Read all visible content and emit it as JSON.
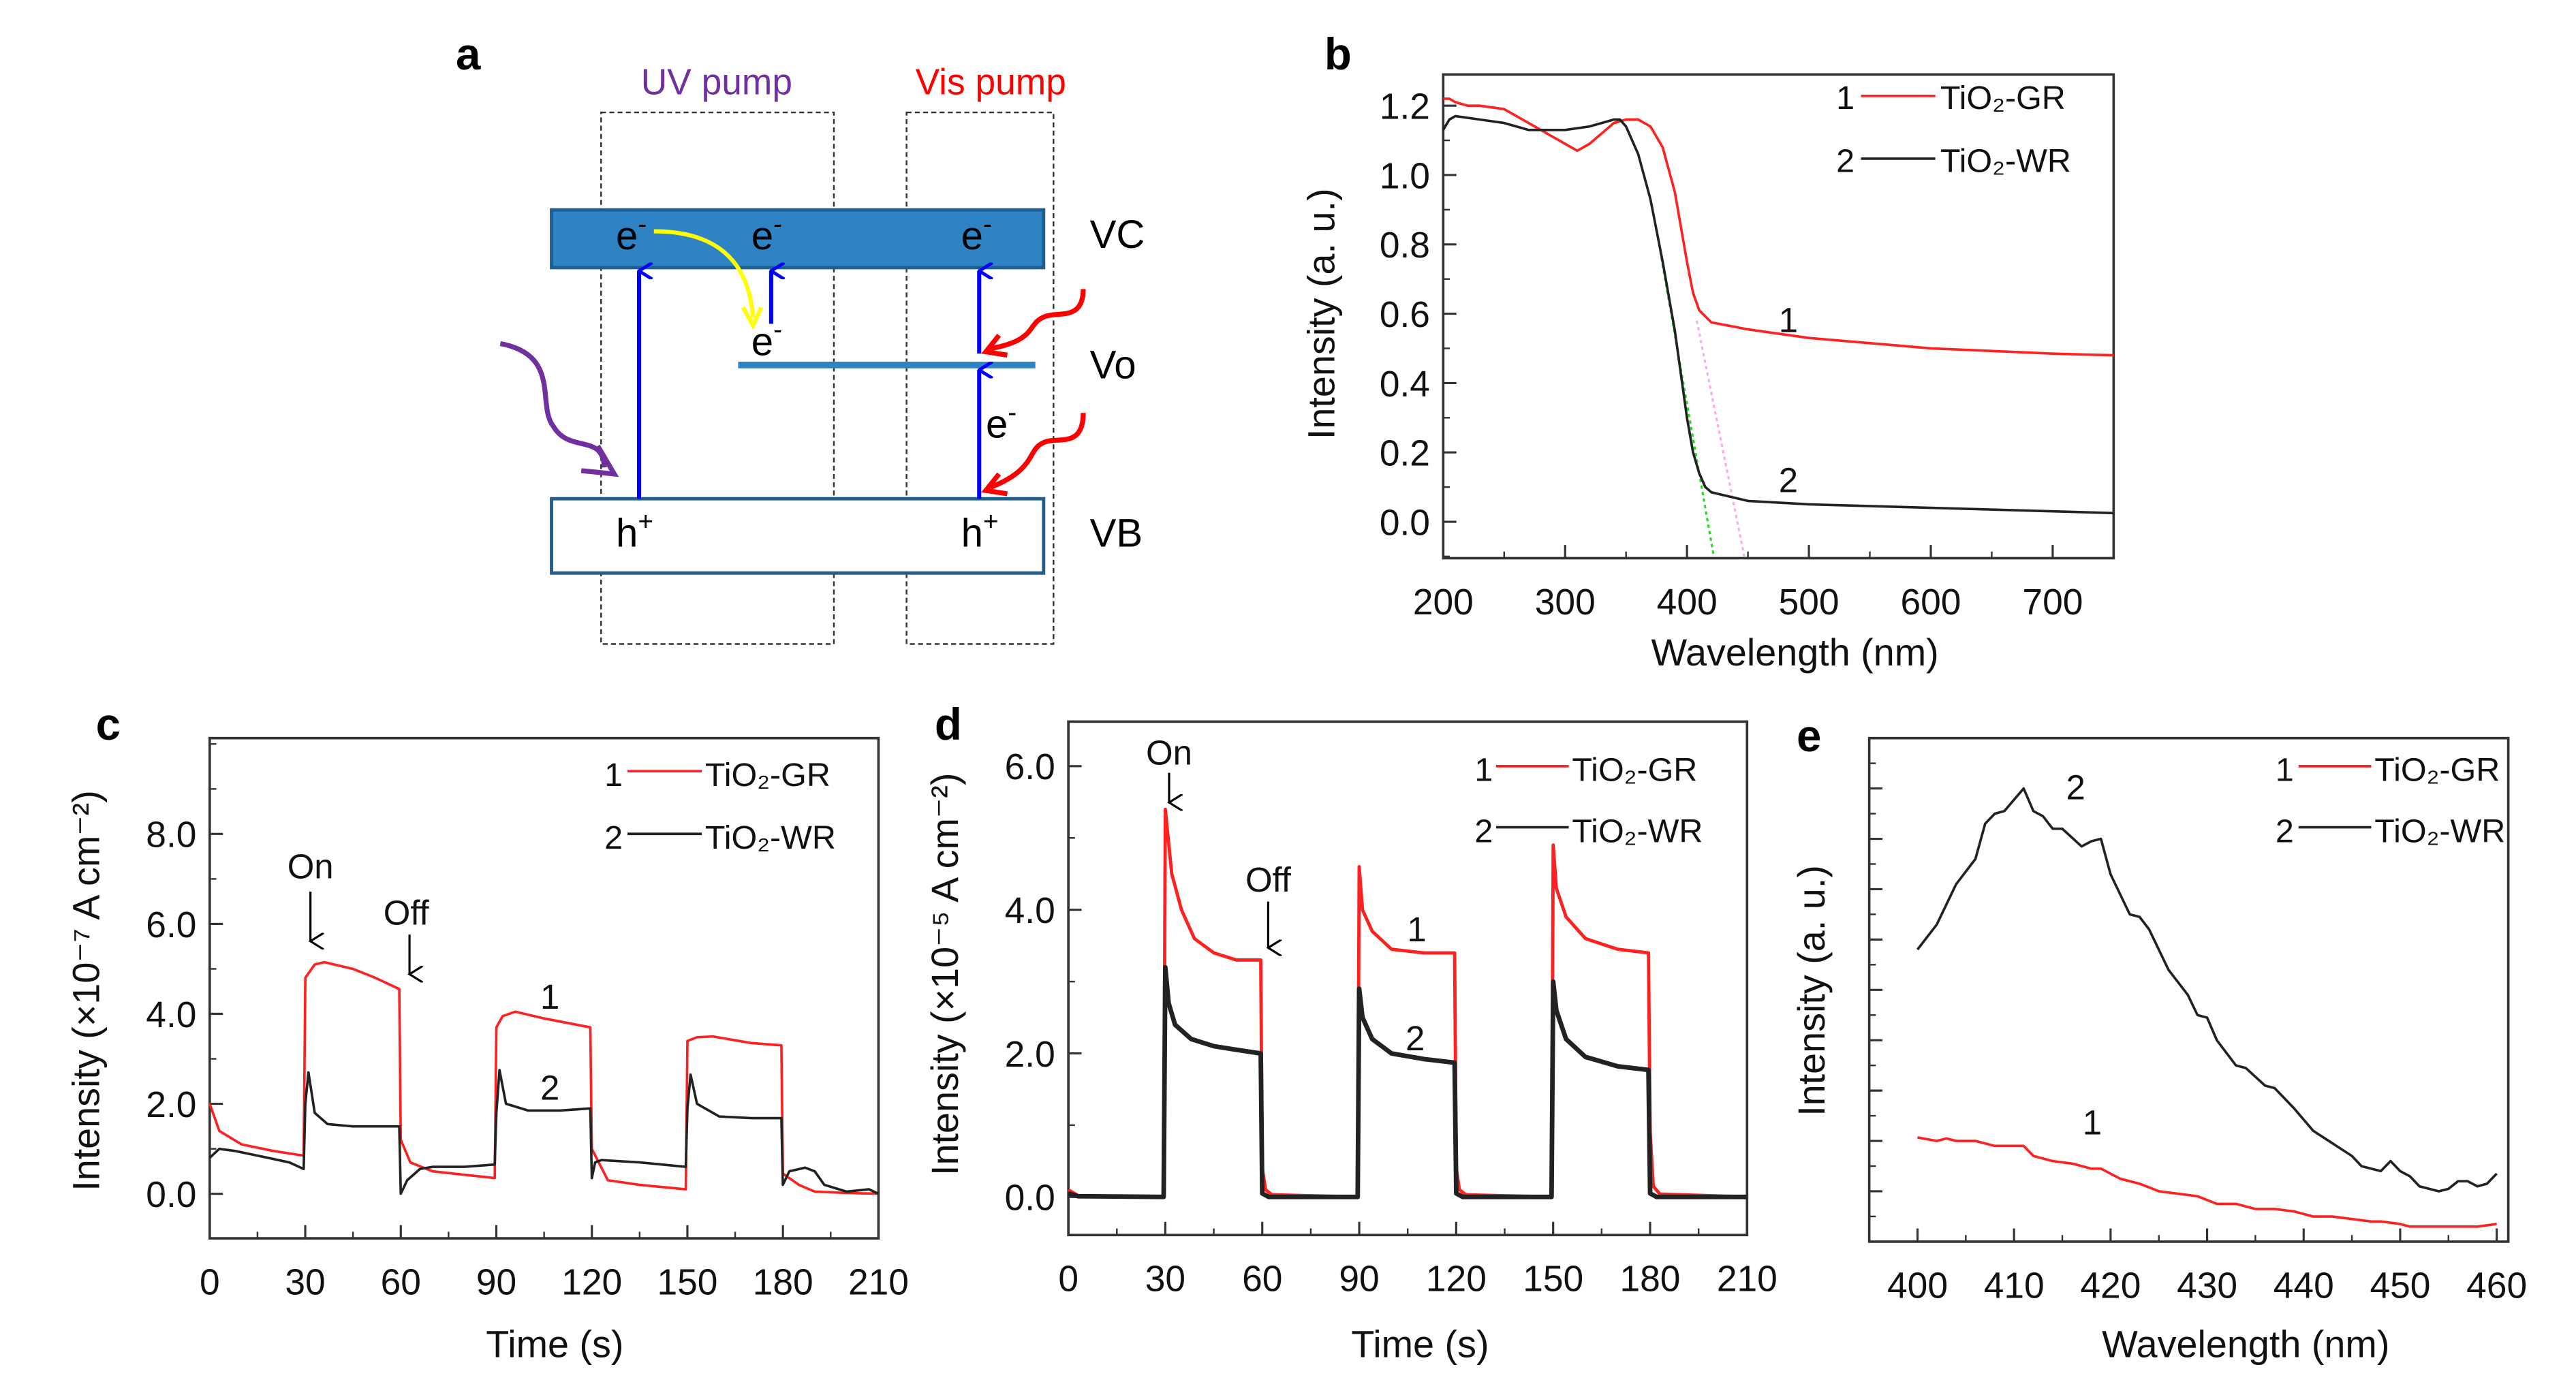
{
  "panel_letters": {
    "a": "a",
    "b": "b",
    "c": "c",
    "d": "d",
    "e": "e"
  },
  "diagram": {
    "uv_pump": "UV pump",
    "vis_pump": "Vis pump",
    "vc": "VC",
    "vo": "Vo",
    "vb": "VB",
    "electron": "e",
    "electron_sup": "-",
    "hole": "h",
    "hole_sup": "+",
    "colors": {
      "uv": "#7030a0",
      "vis": "#ff0000",
      "band": "#2e83c4",
      "arrow": "#0000ff",
      "transfer": "#ffff00"
    }
  },
  "legend": {
    "n1": "1",
    "n2": "2",
    "s1": "TiO₂-GR",
    "s2": "TiO₂-WR",
    "c1": "#ff2020",
    "c2": "#222222"
  },
  "annotations": {
    "on": "On",
    "off": "Off",
    "l1": "1",
    "l2": "2"
  },
  "chart_data": [
    {
      "id": "b",
      "type": "line",
      "xlabel": "Wavelength (nm)",
      "ylabel": "Intensity (a. u.)",
      "xlim": [
        200,
        750
      ],
      "ylim": [
        -0.105,
        1.29
      ],
      "xticks": [
        200,
        300,
        400,
        500,
        600,
        700
      ],
      "xtick_labels": [
        "200",
        "300",
        "400",
        "500",
        "600",
        "700"
      ],
      "xminor": 50,
      "yticks": [
        0,
        0.2,
        0.4,
        0.6,
        0.8,
        1.0,
        1.2
      ],
      "ytick_labels": [
        "0.0",
        "0.2",
        "0.4",
        "0.6",
        "0.8",
        "1.0",
        "1.2"
      ],
      "yminor": 0.1,
      "series": [
        {
          "name": "TiO₂-GR",
          "label": "1",
          "x": [
            200,
            205,
            210,
            220,
            230,
            250,
            270,
            290,
            300,
            310,
            320,
            330,
            340,
            350,
            360,
            370,
            380,
            390,
            400,
            405,
            410,
            420,
            450,
            500,
            600,
            700,
            750
          ],
          "y": [
            1.22,
            1.22,
            1.21,
            1.2,
            1.2,
            1.19,
            1.15,
            1.11,
            1.09,
            1.07,
            1.09,
            1.12,
            1.15,
            1.16,
            1.16,
            1.14,
            1.08,
            0.95,
            0.75,
            0.66,
            0.61,
            0.575,
            0.555,
            0.53,
            0.5,
            0.485,
            0.48
          ]
        },
        {
          "name": "TiO₂-WR",
          "label": "2",
          "x": [
            200,
            205,
            210,
            230,
            250,
            270,
            280,
            300,
            320,
            330,
            340,
            345,
            350,
            360,
            370,
            380,
            390,
            400,
            405,
            410,
            415,
            420,
            450,
            500,
            600,
            700,
            750
          ],
          "y": [
            1.13,
            1.16,
            1.17,
            1.16,
            1.15,
            1.13,
            1.13,
            1.13,
            1.14,
            1.15,
            1.16,
            1.16,
            1.14,
            1.06,
            0.93,
            0.75,
            0.55,
            0.3,
            0.2,
            0.14,
            0.1,
            0.085,
            0.06,
            0.05,
            0.04,
            0.03,
            0.025
          ]
        }
      ],
      "tangent_lines": [
        {
          "color": "#22dd22",
          "x": [
            378,
            422
          ],
          "y": [
            0.78,
            -0.1
          ]
        },
        {
          "color": "#ffaaee",
          "x": [
            408,
            447
          ],
          "y": [
            0.58,
            -0.1
          ]
        }
      ]
    },
    {
      "id": "c",
      "type": "line",
      "xlabel": "Time (s)",
      "ylabel": "Intensity (×10⁻⁷ A cm⁻²)",
      "xlim": [
        0,
        210
      ],
      "ylim": [
        -0.99,
        10.13
      ],
      "xticks": [
        0,
        30,
        60,
        90,
        120,
        150,
        180,
        210
      ],
      "xtick_labels": [
        "0",
        "30",
        "60",
        "90",
        "120",
        "150",
        "180",
        "210"
      ],
      "xminor": 15,
      "yticks": [
        0,
        2,
        4,
        6,
        8
      ],
      "ytick_labels": [
        "0.0",
        "2.0",
        "4.0",
        "6.0",
        "8.0"
      ],
      "yminor": 1,
      "series": [
        {
          "name": "TiO₂-GR",
          "label": "1",
          "x": [
            0,
            3,
            10,
            20,
            29.5,
            30,
            33,
            36,
            45,
            52,
            59.5,
            60,
            63,
            70,
            89.5,
            90,
            92,
            96,
            105,
            119.5,
            120,
            125,
            135,
            149.5,
            150,
            153,
            158,
            170,
            179.5,
            180,
            185,
            190,
            200,
            210
          ],
          "y": [
            2.0,
            1.4,
            1.1,
            0.95,
            0.85,
            4.8,
            5.1,
            5.15,
            5.0,
            4.8,
            4.55,
            1.2,
            0.7,
            0.5,
            0.35,
            3.7,
            3.95,
            4.05,
            3.9,
            3.7,
            1.0,
            0.3,
            0.2,
            0.1,
            3.4,
            3.48,
            3.5,
            3.35,
            3.3,
            0.45,
            0.2,
            0.05,
            0.02,
            0
          ]
        },
        {
          "name": "TiO₂-WR",
          "label": "2",
          "x": [
            0,
            3,
            8,
            15,
            25,
            29.5,
            30,
            31,
            33,
            37,
            45,
            59.5,
            60,
            62,
            66,
            70,
            80,
            89.5,
            90,
            91,
            93,
            100,
            110,
            119.5,
            120,
            121,
            123,
            135,
            149.5,
            150,
            151,
            153,
            160,
            170,
            179.5,
            180,
            182,
            187,
            190,
            193,
            200,
            207,
            210
          ],
          "y": [
            0.8,
            1.0,
            0.95,
            0.85,
            0.7,
            0.55,
            2.0,
            2.7,
            1.8,
            1.55,
            1.5,
            1.5,
            0,
            0.3,
            0.55,
            0.6,
            0.6,
            0.65,
            1.8,
            2.75,
            2.0,
            1.85,
            1.85,
            1.9,
            0.35,
            0.7,
            0.75,
            0.7,
            0.6,
            1.9,
            2.65,
            2.0,
            1.72,
            1.68,
            1.68,
            0.2,
            0.5,
            0.58,
            0.5,
            0.2,
            0.05,
            0.1,
            0
          ]
        }
      ]
    },
    {
      "id": "d",
      "type": "line",
      "xlabel": "Time (s)",
      "ylabel": "Intensity (×10⁻⁵ A cm⁻²)",
      "xlim": [
        0,
        210
      ],
      "ylim": [
        -0.53,
        6.62
      ],
      "xticks": [
        0,
        30,
        60,
        90,
        120,
        150,
        180,
        210
      ],
      "xtick_labels": [
        "0",
        "30",
        "60",
        "90",
        "120",
        "150",
        "180",
        "210"
      ],
      "xminor": 15,
      "yticks": [
        0,
        2,
        4,
        6
      ],
      "ytick_labels": [
        "0.0",
        "2.0",
        "4.0",
        "6.0"
      ],
      "yminor": 1,
      "series": [
        {
          "name": "TiO₂-GR",
          "label": "1",
          "x": [
            0,
            3,
            29.5,
            30,
            32,
            35,
            39,
            45,
            52,
            59.5,
            60,
            61,
            63,
            89.5,
            90,
            91,
            94,
            100,
            110,
            119.5,
            120,
            121,
            123,
            149.5,
            150,
            151,
            154,
            160,
            170,
            179.5,
            180,
            181,
            183,
            210
          ],
          "y": [
            0.1,
            0.02,
            0,
            5.4,
            4.5,
            4.0,
            3.6,
            3.4,
            3.3,
            3.3,
            0.4,
            0.1,
            0.03,
            0,
            4.6,
            4.0,
            3.7,
            3.45,
            3.4,
            3.4,
            0.4,
            0.1,
            0.03,
            0,
            4.9,
            4.3,
            3.9,
            3.6,
            3.45,
            3.4,
            0.9,
            0.15,
            0.04,
            0
          ]
        },
        {
          "name": "TiO₂-WR",
          "label": "2",
          "x": [
            0,
            3,
            29.5,
            30,
            31,
            33,
            38,
            45,
            52,
            59.5,
            60,
            62,
            89.5,
            90,
            91,
            94,
            100,
            110,
            119.5,
            120,
            122,
            149.5,
            150,
            151,
            154,
            160,
            170,
            179.5,
            180,
            182,
            210
          ],
          "y": [
            0.05,
            0.01,
            0,
            3.2,
            2.7,
            2.4,
            2.2,
            2.1,
            2.05,
            2.0,
            0.05,
            0,
            0,
            2.9,
            2.5,
            2.2,
            2.0,
            1.92,
            1.87,
            0.05,
            0,
            0,
            3.0,
            2.6,
            2.2,
            1.95,
            1.82,
            1.77,
            0.05,
            0,
            0
          ]
        }
      ]
    },
    {
      "id": "e",
      "type": "line",
      "xlabel": "Wavelength (nm)",
      "ylabel": "Intensity (a. u.)",
      "xlim": [
        395,
        461.2
      ],
      "ylim": [
        0,
        10
      ],
      "xticks": [
        400,
        410,
        420,
        430,
        440,
        450,
        460
      ],
      "xtick_labels": [
        "400",
        "410",
        "420",
        "430",
        "440",
        "450",
        "460"
      ],
      "xminor": 5,
      "yticks": [
        1,
        2,
        3,
        4,
        5,
        6,
        7,
        8,
        9
      ],
      "ytick_labels": [],
      "yminor": 0.5,
      "series": [
        {
          "name": "TiO₂-GR",
          "label": "1",
          "x": [
            400,
            402,
            403,
            404,
            406,
            408,
            410,
            411,
            412,
            414,
            416,
            418,
            419,
            421,
            423,
            425,
            427,
            429,
            431,
            433,
            435,
            437,
            439,
            441,
            443,
            445,
            447,
            448,
            450,
            451,
            455,
            458,
            460
          ],
          "y": [
            2.07,
            2.0,
            2.05,
            2.0,
            2.0,
            1.9,
            1.9,
            1.9,
            1.7,
            1.6,
            1.55,
            1.45,
            1.45,
            1.25,
            1.15,
            1.0,
            0.95,
            0.9,
            0.75,
            0.75,
            0.65,
            0.65,
            0.6,
            0.5,
            0.5,
            0.45,
            0.4,
            0.4,
            0.35,
            0.3,
            0.3,
            0.3,
            0.35
          ]
        },
        {
          "name": "TiO₂-WR",
          "label": "2",
          "x": [
            400,
            402,
            404,
            406,
            407,
            408,
            409,
            411,
            412,
            413,
            414,
            415,
            417,
            418,
            419,
            420,
            422,
            423,
            424,
            426,
            428,
            429,
            430,
            431,
            433,
            434,
            436,
            437,
            439,
            441,
            443,
            445,
            446,
            448,
            449,
            450,
            451,
            452,
            454,
            455,
            456,
            457,
            458,
            459,
            460
          ],
          "y": [
            5.8,
            6.3,
            7.1,
            7.6,
            8.3,
            8.5,
            8.55,
            9.0,
            8.55,
            8.45,
            8.2,
            8.2,
            7.85,
            7.95,
            8.0,
            7.3,
            6.5,
            6.45,
            6.2,
            5.4,
            4.9,
            4.5,
            4.45,
            4.0,
            3.5,
            3.45,
            3.1,
            3.05,
            2.65,
            2.2,
            1.95,
            1.7,
            1.5,
            1.4,
            1.6,
            1.4,
            1.3,
            1.1,
            1.0,
            1.05,
            1.2,
            1.2,
            1.1,
            1.15,
            1.35
          ]
        }
      ]
    }
  ]
}
